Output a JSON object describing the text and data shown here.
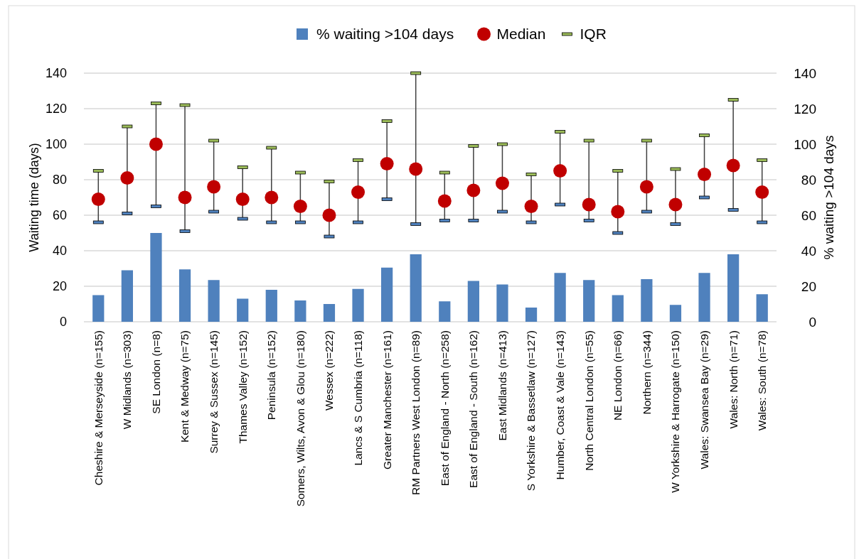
{
  "chart_data": {
    "type": "bar",
    "ylabel": "Waiting time (days)",
    "y2label": "% waiting >104 days",
    "categories": [
      "Cheshire & Merseyside (n=155)",
      "W Midlands (n=303)",
      "SE London (n=8)",
      "Kent & Medway (n=75)",
      "Surrey & Sussex (n=145)",
      "Thames Valley (n=152)",
      "Peninsula (n=152)",
      "Somers, Wilts, Avon & Glou (n=180)",
      "Wessex (n=222)",
      "Lancs & S Cumbria (n=118)",
      "Greater Manchester (n=161)",
      "RM Partners West London (n=89)",
      "East of England - North (n=258)",
      "East of England - South (n=162)",
      "East Midlands (n=413)",
      "S Yorkshire & Bassetlaw (n=127)",
      "Humber, Coast & Vale (n=143)",
      "North Central London (n=55)",
      "NE London (n=66)",
      "Northern (n=344)",
      "W Yorkshire & Harrogate (n=150)",
      "Wales: Swansea Bay (n=29)",
      "Wales: North (n=71)",
      "Wales: South (n=78)"
    ],
    "series": [
      {
        "name": "% waiting >104 days",
        "axis": "y2",
        "color": "#4f81bd",
        "values": [
          15,
          29,
          50,
          29.5,
          23.5,
          13,
          18,
          12,
          10,
          18.5,
          30.5,
          38,
          11.5,
          23,
          21,
          8,
          27.5,
          23.5,
          15,
          24,
          9.5,
          27.5,
          38,
          15.5
        ]
      },
      {
        "name": "Median",
        "type": "scatter",
        "marker": "circle",
        "color": "#c00000",
        "values": [
          69,
          81,
          100,
          70,
          76,
          69,
          70,
          65,
          60,
          73,
          89,
          86,
          68,
          74,
          78,
          65,
          85,
          66,
          62,
          76,
          66,
          83,
          88,
          73
        ],
        "errors": [
          [
            56,
            85
          ],
          [
            61,
            110
          ],
          [
            65,
            123
          ],
          [
            51,
            122
          ],
          [
            62,
            102
          ],
          [
            58,
            87
          ],
          [
            56,
            98
          ],
          [
            56,
            84
          ],
          [
            48,
            79
          ],
          [
            56,
            91
          ],
          [
            69,
            113
          ],
          [
            55,
            140
          ],
          [
            57,
            84
          ],
          [
            57,
            99
          ],
          [
            62,
            100
          ],
          [
            56,
            83
          ],
          [
            66,
            107
          ],
          [
            57,
            102
          ],
          [
            50,
            85
          ],
          [
            62,
            102
          ],
          [
            55,
            86
          ],
          [
            70,
            105
          ],
          [
            63,
            125
          ],
          [
            56,
            91
          ]
        ]
      }
    ],
    "annotations": [
      "IQR"
    ],
    "ylim": [
      0,
      140
    ],
    "yticks": [
      0,
      20,
      40,
      60,
      80,
      100,
      120,
      140
    ],
    "y2lim": [
      0,
      140
    ],
    "y2ticks": [
      0,
      20,
      40,
      60,
      80,
      100,
      120,
      140
    ],
    "grid": "y",
    "legend": "top"
  }
}
